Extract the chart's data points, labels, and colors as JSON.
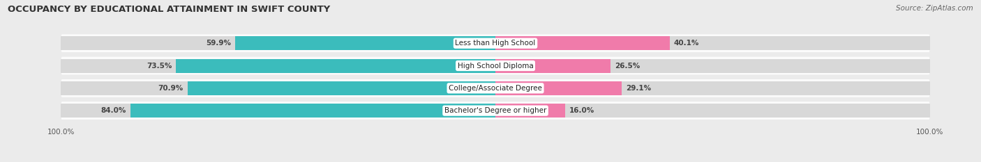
{
  "title": "OCCUPANCY BY EDUCATIONAL ATTAINMENT IN SWIFT COUNTY",
  "source": "Source: ZipAtlas.com",
  "categories": [
    "Less than High School",
    "High School Diploma",
    "College/Associate Degree",
    "Bachelor's Degree or higher"
  ],
  "owner_values": [
    59.9,
    73.5,
    70.9,
    84.0
  ],
  "renter_values": [
    40.1,
    26.5,
    29.1,
    16.0
  ],
  "owner_color": "#3BBCBC",
  "renter_color": "#F07BAA",
  "bg_color": "#EBEBEB",
  "row_bg_color": "#D8D8D8",
  "bar_height": 0.62,
  "title_fontsize": 9.5,
  "label_fontsize": 7.5,
  "value_fontsize": 7.5,
  "tick_fontsize": 7.5,
  "legend_fontsize": 8,
  "source_fontsize": 7.5
}
